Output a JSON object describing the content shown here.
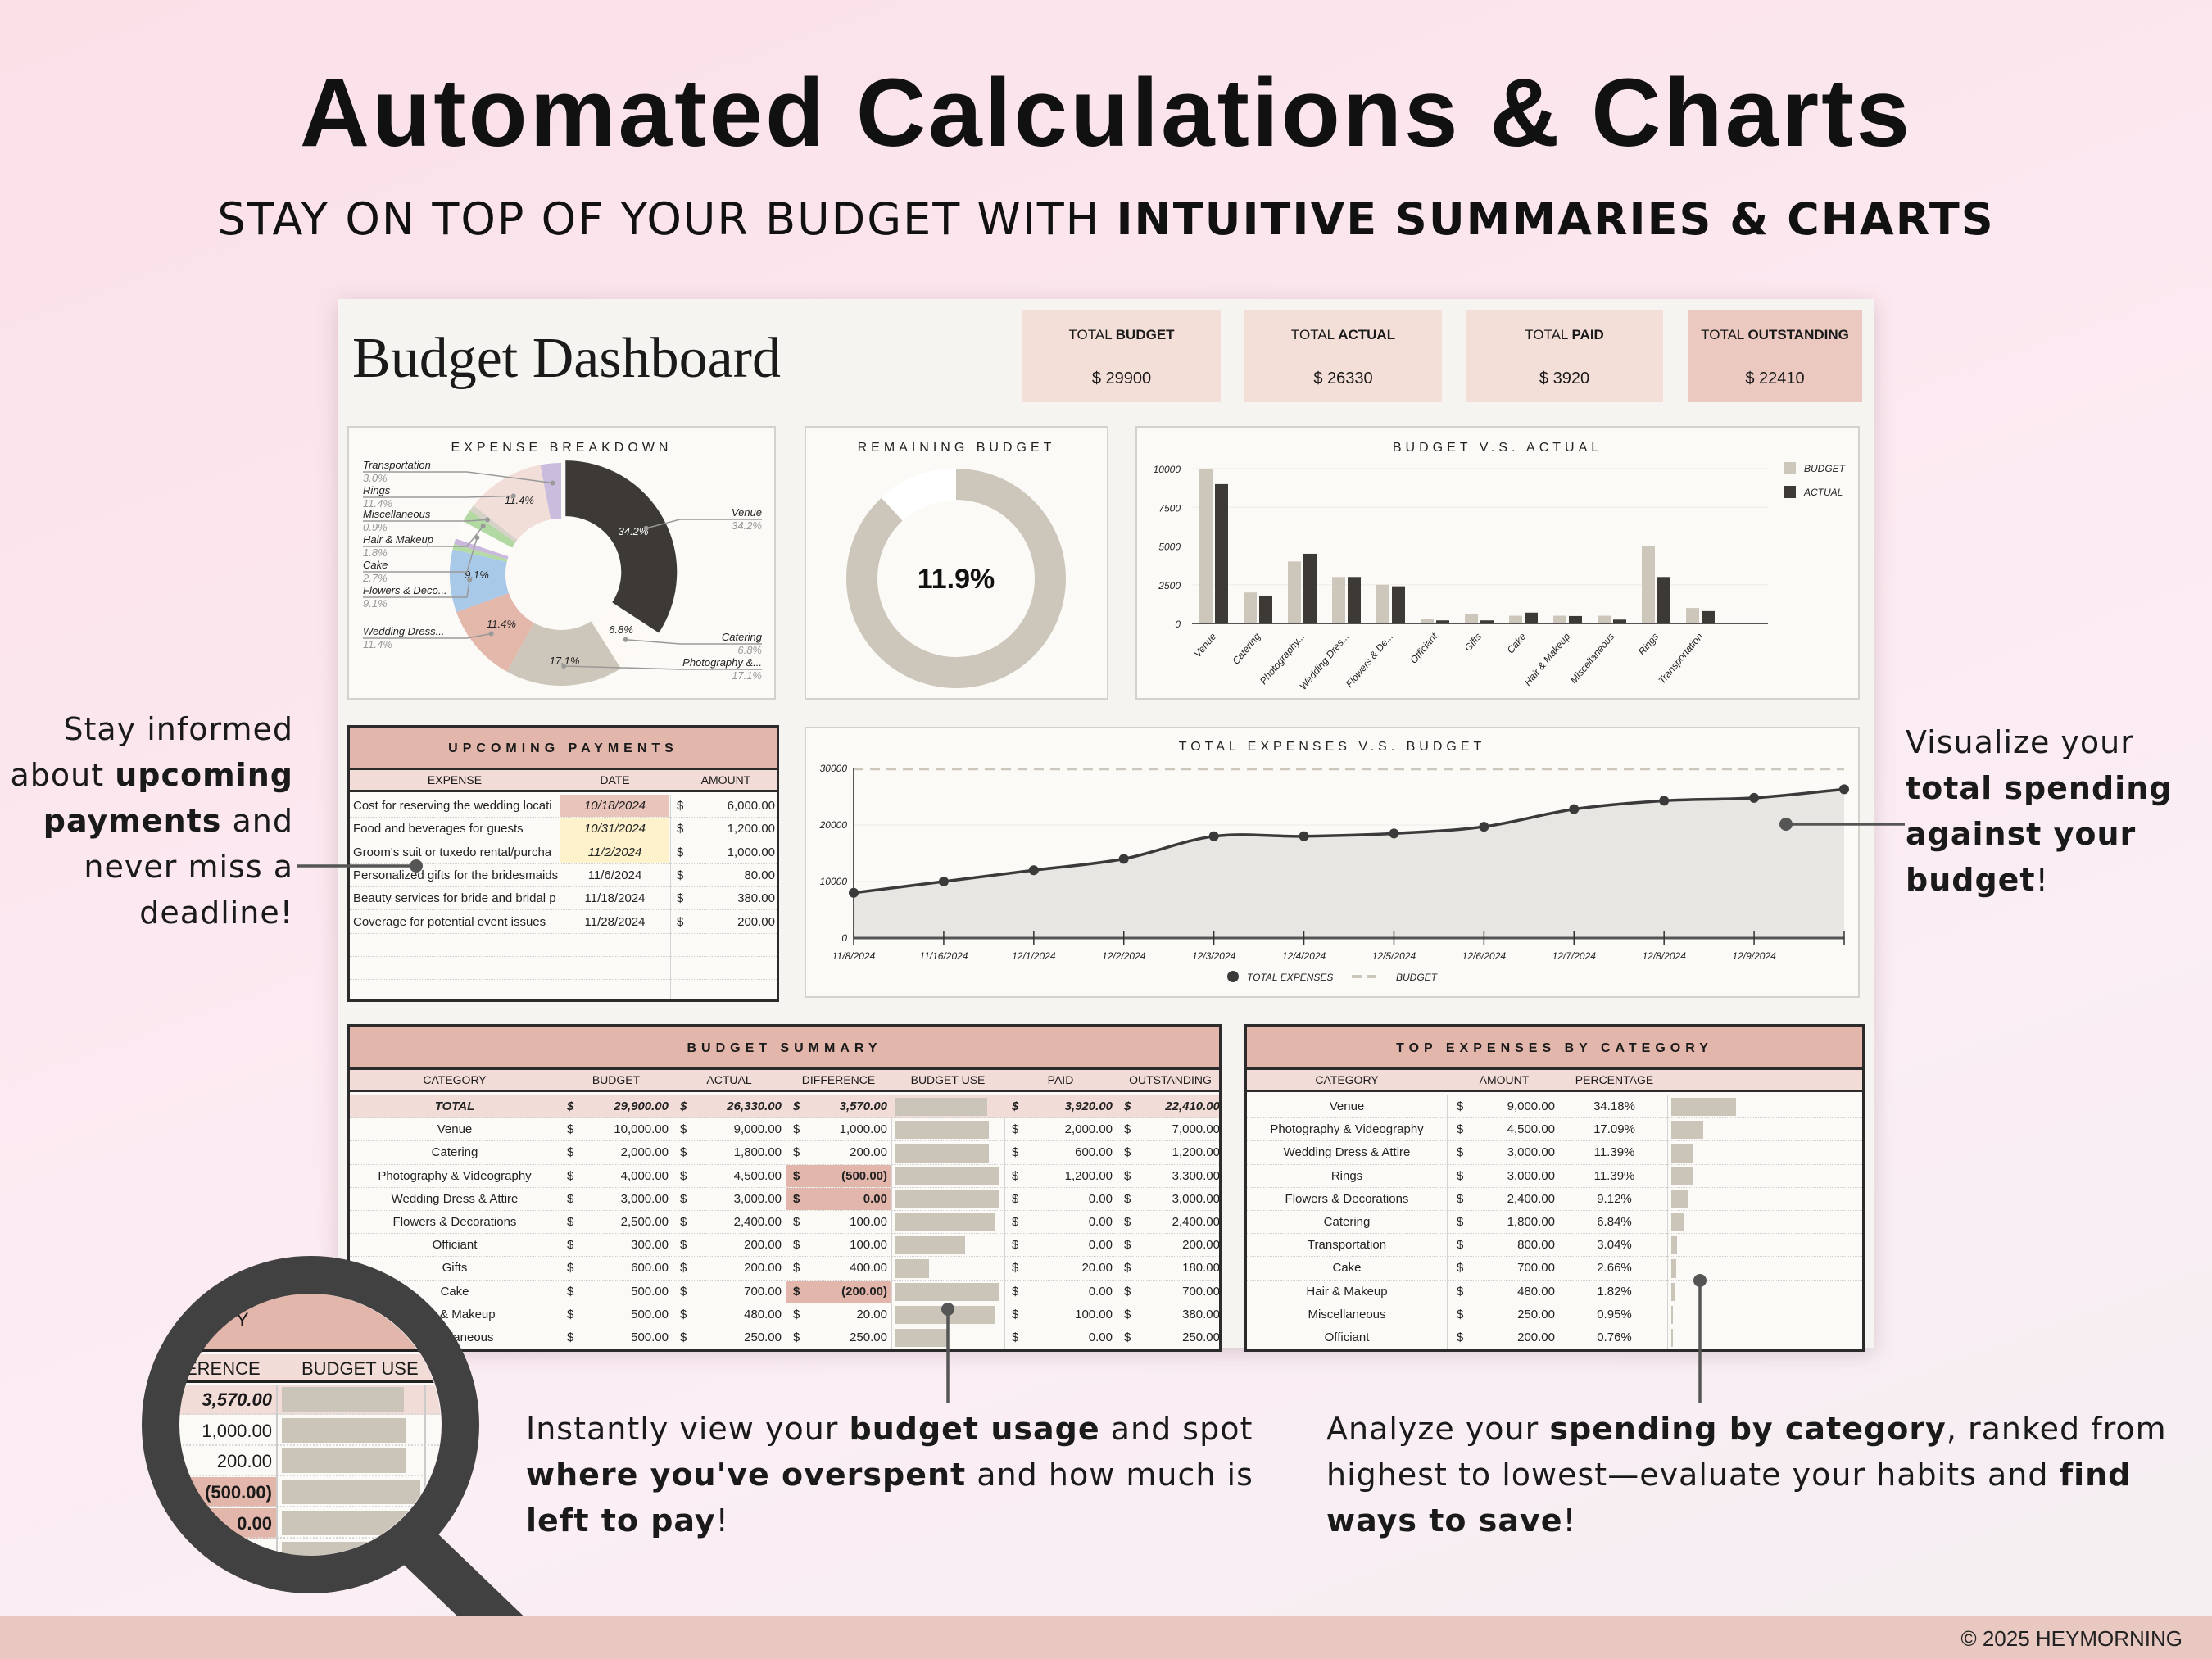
{
  "header": {
    "title": "Automated Calculations & Charts",
    "subtitle_regular": "STAY ON TOP OF YOUR BUDGET WITH ",
    "subtitle_bold": "INTUITIVE SUMMARIES & CHARTS"
  },
  "dashboard": {
    "title": "Budget Dashboard",
    "kpis": [
      {
        "label_regular": "TOTAL ",
        "label_bold": "BUDGET",
        "value": "$ 29900"
      },
      {
        "label_regular": "TOTAL ",
        "label_bold": "ACTUAL",
        "value": "$ 26330"
      },
      {
        "label_regular": "TOTAL ",
        "label_bold": "PAID",
        "value": "$ 3920"
      },
      {
        "label_regular": "TOTAL ",
        "label_bold": "OUTSTANDING",
        "value": "$ 22410"
      }
    ]
  },
  "remaining_budget": {
    "title": "REMAINING BUDGET",
    "value": "11.9%",
    "percent": 11.9
  },
  "upcoming_payments": {
    "title": "UPCOMING PAYMENTS",
    "columns": [
      "EXPENSE",
      "DATE",
      "AMOUNT"
    ],
    "rows": [
      {
        "expense": "Cost for reserving the wedding locati",
        "date": "10/18/2024",
        "cur": "$",
        "amount": "6,000.00",
        "status": "due"
      },
      {
        "expense": "Food and beverages for guests",
        "date": "10/31/2024",
        "cur": "$",
        "amount": "1,200.00",
        "status": "soon"
      },
      {
        "expense": "Groom's suit or tuxedo rental/purcha",
        "date": "11/2/2024",
        "cur": "$",
        "amount": "1,000.00",
        "status": "soon"
      },
      {
        "expense": "Personalized gifts for the bridesmaids",
        "date": "11/6/2024",
        "cur": "$",
        "amount": "80.00",
        "status": ""
      },
      {
        "expense": "Beauty services for bride and bridal p",
        "date": "11/18/2024",
        "cur": "$",
        "amount": "380.00",
        "status": ""
      },
      {
        "expense": "Coverage for potential event issues",
        "date": "11/28/2024",
        "cur": "$",
        "amount": "200.00",
        "status": ""
      }
    ],
    "empty_rows": 3
  },
  "budget_summary": {
    "title": "BUDGET SUMMARY",
    "columns": [
      "CATEGORY",
      "BUDGET",
      "ACTUAL",
      "DIFFERENCE",
      "BUDGET USE",
      "PAID",
      "OUTSTANDING"
    ],
    "rows": [
      {
        "category": "TOTAL",
        "budget": "29,900.00",
        "actual": "26,330.00",
        "difference": "3,570.00",
        "use": 0.88,
        "paid": "3,920.00",
        "outstanding": "22,410.00",
        "total": true
      },
      {
        "category": "Venue",
        "budget": "10,000.00",
        "actual": "9,000.00",
        "difference": "1,000.00",
        "use": 0.9,
        "paid": "2,000.00",
        "outstanding": "7,000.00"
      },
      {
        "category": "Catering",
        "budget": "2,000.00",
        "actual": "1,800.00",
        "difference": "200.00",
        "use": 0.9,
        "paid": "600.00",
        "outstanding": "1,200.00"
      },
      {
        "category": "Photography & Videography",
        "budget": "4,000.00",
        "actual": "4,500.00",
        "difference": "(500.00)",
        "use": 1.0,
        "paid": "1,200.00",
        "outstanding": "3,300.00",
        "over": true
      },
      {
        "category": "Wedding Dress & Attire",
        "budget": "3,000.00",
        "actual": "3,000.00",
        "difference": "0.00",
        "use": 1.0,
        "paid": "0.00",
        "outstanding": "3,000.00",
        "over": true
      },
      {
        "category": "Flowers & Decorations",
        "budget": "2,500.00",
        "actual": "2,400.00",
        "difference": "100.00",
        "use": 0.96,
        "paid": "0.00",
        "outstanding": "2,400.00"
      },
      {
        "category": "Officiant",
        "budget": "300.00",
        "actual": "200.00",
        "difference": "100.00",
        "use": 0.67,
        "paid": "0.00",
        "outstanding": "200.00"
      },
      {
        "category": "Gifts",
        "budget": "600.00",
        "actual": "200.00",
        "difference": "400.00",
        "use": 0.33,
        "paid": "20.00",
        "outstanding": "180.00"
      },
      {
        "category": "Cake",
        "budget": "500.00",
        "actual": "700.00",
        "difference": "(200.00)",
        "use": 1.0,
        "paid": "0.00",
        "outstanding": "700.00",
        "over": true
      },
      {
        "category": "Hair & Makeup",
        "budget": "500.00",
        "actual": "480.00",
        "difference": "20.00",
        "use": 0.96,
        "paid": "100.00",
        "outstanding": "380.00"
      },
      {
        "category": "Miscellaneous",
        "budget": "500.00",
        "actual": "250.00",
        "difference": "250.00",
        "use": 0.5,
        "paid": "0.00",
        "outstanding": "250.00"
      }
    ]
  },
  "top_expenses": {
    "title": "TOP EXPENSES BY CATEGORY",
    "columns": [
      "CATEGORY",
      "AMOUNT",
      "PERCENTAGE"
    ],
    "rows": [
      {
        "category": "Venue",
        "amount": "9,000.00",
        "percentage": "34.18%",
        "pct": 34.18
      },
      {
        "category": "Photography & Videography",
        "amount": "4,500.00",
        "percentage": "17.09%",
        "pct": 17.09
      },
      {
        "category": "Wedding Dress & Attire",
        "amount": "3,000.00",
        "percentage": "11.39%",
        "pct": 11.39
      },
      {
        "category": "Rings",
        "amount": "3,000.00",
        "percentage": "11.39%",
        "pct": 11.39
      },
      {
        "category": "Flowers & Decorations",
        "amount": "2,400.00",
        "percentage": "9.12%",
        "pct": 9.12
      },
      {
        "category": "Catering",
        "amount": "1,800.00",
        "percentage": "6.84%",
        "pct": 6.84
      },
      {
        "category": "Transportation",
        "amount": "800.00",
        "percentage": "3.04%",
        "pct": 3.04
      },
      {
        "category": "Cake",
        "amount": "700.00",
        "percentage": "2.66%",
        "pct": 2.66
      },
      {
        "category": "Hair & Makeup",
        "amount": "480.00",
        "percentage": "1.82%",
        "pct": 1.82
      },
      {
        "category": "Miscellaneous",
        "amount": "250.00",
        "percentage": "0.95%",
        "pct": 0.95
      },
      {
        "category": "Officiant",
        "amount": "200.00",
        "percentage": "0.76%",
        "pct": 0.76
      }
    ]
  },
  "magnifier": {
    "header": "R Y",
    "columns": [
      "ERENCE",
      "BUDGET USE"
    ],
    "values": [
      "3,570.00",
      "1,000.00",
      "200.00",
      "(500.00)",
      "0.00"
    ]
  },
  "callouts": {
    "left": [
      [
        {
          "t": "Stay informed"
        }
      ],
      [
        {
          "t": "about "
        },
        {
          "t": "upcoming",
          "b": true
        }
      ],
      [
        {
          "t": "payments",
          "b": true
        },
        {
          "t": " and"
        }
      ],
      [
        {
          "t": "never miss a"
        }
      ],
      [
        {
          "t": "deadline!"
        }
      ]
    ],
    "right": [
      [
        {
          "t": "Visualize your"
        }
      ],
      [
        {
          "t": "total spending",
          "b": true
        }
      ],
      [
        {
          "t": "against your",
          "b": true
        }
      ],
      [
        {
          "t": "budget",
          "b": true
        },
        {
          "t": "!"
        }
      ]
    ],
    "bottom_middle": [
      [
        {
          "t": "Instantly view your "
        },
        {
          "t": "budget usage",
          "b": true
        },
        {
          "t": " and spot"
        }
      ],
      [
        {
          "t": "where you've overspent",
          "b": true
        },
        {
          "t": " and how much is"
        }
      ],
      [
        {
          "t": "left to pay",
          "b": true
        },
        {
          "t": "!"
        }
      ]
    ],
    "bottom_right": [
      [
        {
          "t": "Analyze your "
        },
        {
          "t": "spending by category",
          "b": true
        },
        {
          "t": ", ranked from"
        }
      ],
      [
        {
          "t": "highest to lowest—evaluate your habits and "
        },
        {
          "t": "find",
          "b": true
        }
      ],
      [
        {
          "t": "ways to save",
          "b": true
        },
        {
          "t": "!"
        }
      ]
    ]
  },
  "footer": {
    "copyright": "© 2025 HEYMORNING"
  },
  "colors": {
    "accent_pink": "#e3b6ab",
    "light_pink": "#f2dcd7",
    "kpi_bg": "#f3ded8",
    "kpi_outstanding_bg": "#ebc9c0",
    "bar_budget": "#cdc6ba",
    "bar_actual": "#3d3a36",
    "due_date": "#e8c4ba",
    "soon_date": "#fdf2cc",
    "footer": "#e8c8c0",
    "magnifier": "#414141"
  },
  "chart_data": [
    {
      "type": "pie",
      "title": "EXPENSE BREAKDOWN",
      "donut": true,
      "slices": [
        {
          "name": "Venue",
          "label": "Venue",
          "value": 34.2,
          "color": "#3d3a36",
          "inner_label": "34.2%",
          "text": "34.2%"
        },
        {
          "name": "Catering",
          "label": "Catering",
          "value": 6.8,
          "color": "#fdfaf6",
          "inner_label": "6.8%",
          "text": "6.8%"
        },
        {
          "name": "Photography & Videography",
          "label": "Photography &...",
          "value": 17.1,
          "color": "#cdc6ba",
          "inner_label": "17.1%",
          "text": "17.1%"
        },
        {
          "name": "Wedding Dress & Attire",
          "label": "Wedding Dress...",
          "value": 11.4,
          "color": "#e4b7ab",
          "inner_label": "11.4%",
          "text": "11.4%"
        },
        {
          "name": "Flowers & Decorations",
          "label": "Flowers & Deco...",
          "value": 9.1,
          "color": "#a8c9e8",
          "inner_label": "9.1%",
          "text": "9.1%"
        },
        {
          "name": "Officiant",
          "value": 0.8,
          "color": "#b5dba4"
        },
        {
          "name": "Gifts",
          "value": 0.8,
          "color": "#c9b8dc"
        },
        {
          "name": "Cake",
          "label": "Cake",
          "value": 2.7,
          "color": "#fefcf9",
          "text": "2.7%"
        },
        {
          "name": "Hair & Makeup",
          "label": "Hair & Makeup",
          "value": 1.8,
          "color": "#b3d9a3",
          "text": "1.8%"
        },
        {
          "name": "Miscellaneous",
          "label": "Miscellaneous",
          "value": 0.9,
          "color": "#d6d2c8",
          "text": "0.9%"
        },
        {
          "name": "Rings",
          "label": "Rings",
          "value": 11.4,
          "color": "#f2ded8",
          "inner_label": "11.4%",
          "text": "11.4%"
        },
        {
          "name": "Transportation",
          "label": "Transportation",
          "value": 3.0,
          "color": "#c9bcdc",
          "text": "3.0%"
        }
      ]
    },
    {
      "type": "bar",
      "title": "BUDGET V.S. ACTUAL",
      "legend": "right",
      "categories": [
        "Venue",
        "Catering",
        "Photography...",
        "Wedding Dres...",
        "Flowers & De...",
        "Officiant",
        "Gifts",
        "Cake",
        "Hair & Makeup",
        "Miscellaneous",
        "Rings",
        "Transportation"
      ],
      "series": [
        {
          "name": "BUDGET",
          "color": "#cdc6ba",
          "values": [
            10000,
            2000,
            4000,
            3000,
            2500,
            300,
            600,
            500,
            500,
            500,
            5000,
            1000
          ]
        },
        {
          "name": "ACTUAL",
          "color": "#3d3a36",
          "values": [
            9000,
            1800,
            4500,
            3000,
            2400,
            200,
            200,
            700,
            480,
            250,
            3000,
            800
          ]
        }
      ],
      "ylim": [
        0,
        10000
      ],
      "yticks": [
        "0",
        "2500",
        "5000",
        "7500",
        "10000"
      ]
    },
    {
      "type": "area",
      "title": "TOTAL EXPENSES V.S. BUDGET",
      "legend": "bottom",
      "x": [
        "11/8/2024",
        "11/16/2024",
        "12/1/2024",
        "12/2/2024",
        "12/3/2024",
        "12/4/2024",
        "12/5/2024",
        "12/6/2024",
        "12/7/2024",
        "12/8/2024",
        "12/9/2024",
        ""
      ],
      "series": [
        {
          "name": "TOTAL EXPENSES",
          "values": [
            8000,
            10000,
            12000,
            14000,
            18000,
            18000,
            18500,
            19700,
            22800,
            24300,
            24800,
            26330
          ]
        },
        {
          "name": "BUDGET",
          "values": [
            29900,
            29900,
            29900,
            29900,
            29900,
            29900,
            29900,
            29900,
            29900,
            29900,
            29900,
            29900
          ],
          "dashed": true
        }
      ],
      "ylim": [
        0,
        30000
      ],
      "yticks": [
        "0",
        "10000",
        "20000",
        "30000"
      ]
    }
  ]
}
